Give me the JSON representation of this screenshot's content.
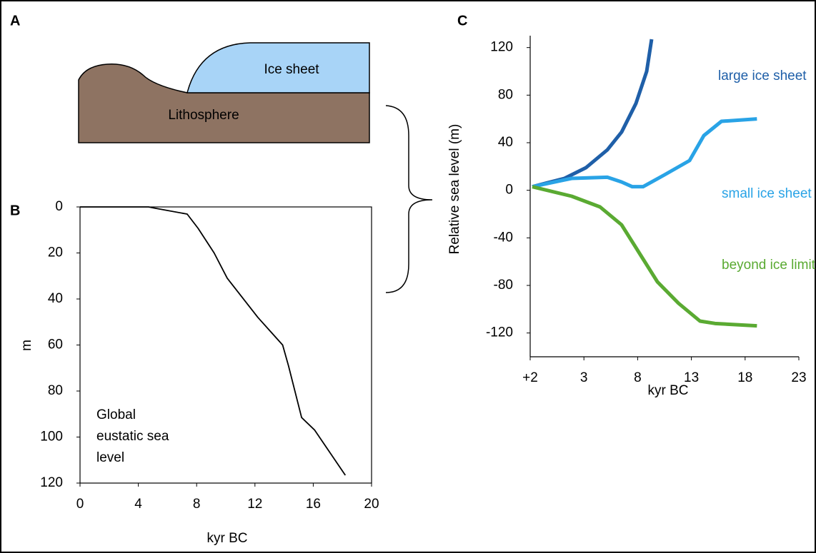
{
  "diagram": {
    "label": "A",
    "ice_sheet": "Ice sheet",
    "lithosphere": "Lithosphere"
  },
  "chart_data": [
    {
      "type": "line",
      "panel_label": "B",
      "xlabel": "kyr BC",
      "ylabel": "m",
      "annotation": [
        "Global",
        "eustatic sea",
        "level"
      ],
      "x": [
        0,
        4.7,
        5.1,
        7.35,
        8.1,
        9.2,
        10.1,
        12.2,
        13.9,
        14.3,
        15.2,
        16.1,
        18.2
      ],
      "values": [
        0,
        0,
        0.5,
        3.1,
        9.3,
        20,
        31,
        48,
        60,
        69,
        91.5,
        97,
        116.6
      ],
      "color": "#000000",
      "xlim": [
        0,
        20
      ],
      "xticks": [
        0,
        4,
        8,
        12,
        16,
        20
      ],
      "ylim": [
        0,
        120
      ],
      "yticks": [
        0,
        20,
        40,
        60,
        80,
        100,
        120
      ],
      "y_inverted": true,
      "frame": true
    },
    {
      "type": "line",
      "panel_label": "C",
      "xlabel": "kyr  BC",
      "ylabel": "Relative sea level (m)",
      "series": [
        {
          "name": "large ice sheet",
          "color": "#1f5fa8",
          "x": [
            -1.8,
            1.19,
            3.19,
            5.18,
            6.51,
            7.84,
            8.84,
            9.3
          ],
          "values": [
            3,
            10,
            19,
            34,
            49,
            73,
            100,
            127
          ]
        },
        {
          "name": "small ice sheet",
          "color": "#29a3e6",
          "x": [
            -1.8,
            1.86,
            5.18,
            6.5,
            7.5,
            8.5,
            10.5,
            12.83,
            14.16,
            15.8,
            19.1
          ],
          "values": [
            3,
            10,
            11,
            7,
            3,
            3,
            13,
            25,
            46,
            58,
            60
          ]
        },
        {
          "name": "beyond ice limit",
          "color": "#5aaa32",
          "x": [
            -1.8,
            1.86,
            4.5,
            6.5,
            8.17,
            9.84,
            11.8,
            13.8,
            15.2,
            19.1
          ],
          "values": [
            3,
            -5,
            -14,
            -29,
            -53,
            -77,
            -95,
            -110,
            -112,
            -114
          ]
        }
      ],
      "xlim": [
        -2,
        23
      ],
      "xticks": [
        {
          "value": -2,
          "label": "+2"
        },
        3,
        8,
        13,
        18,
        23
      ],
      "ylim": [
        -140,
        130
      ],
      "yticks": [
        120,
        80,
        40,
        0,
        -40,
        -80,
        -120
      ],
      "frame": false
    }
  ]
}
